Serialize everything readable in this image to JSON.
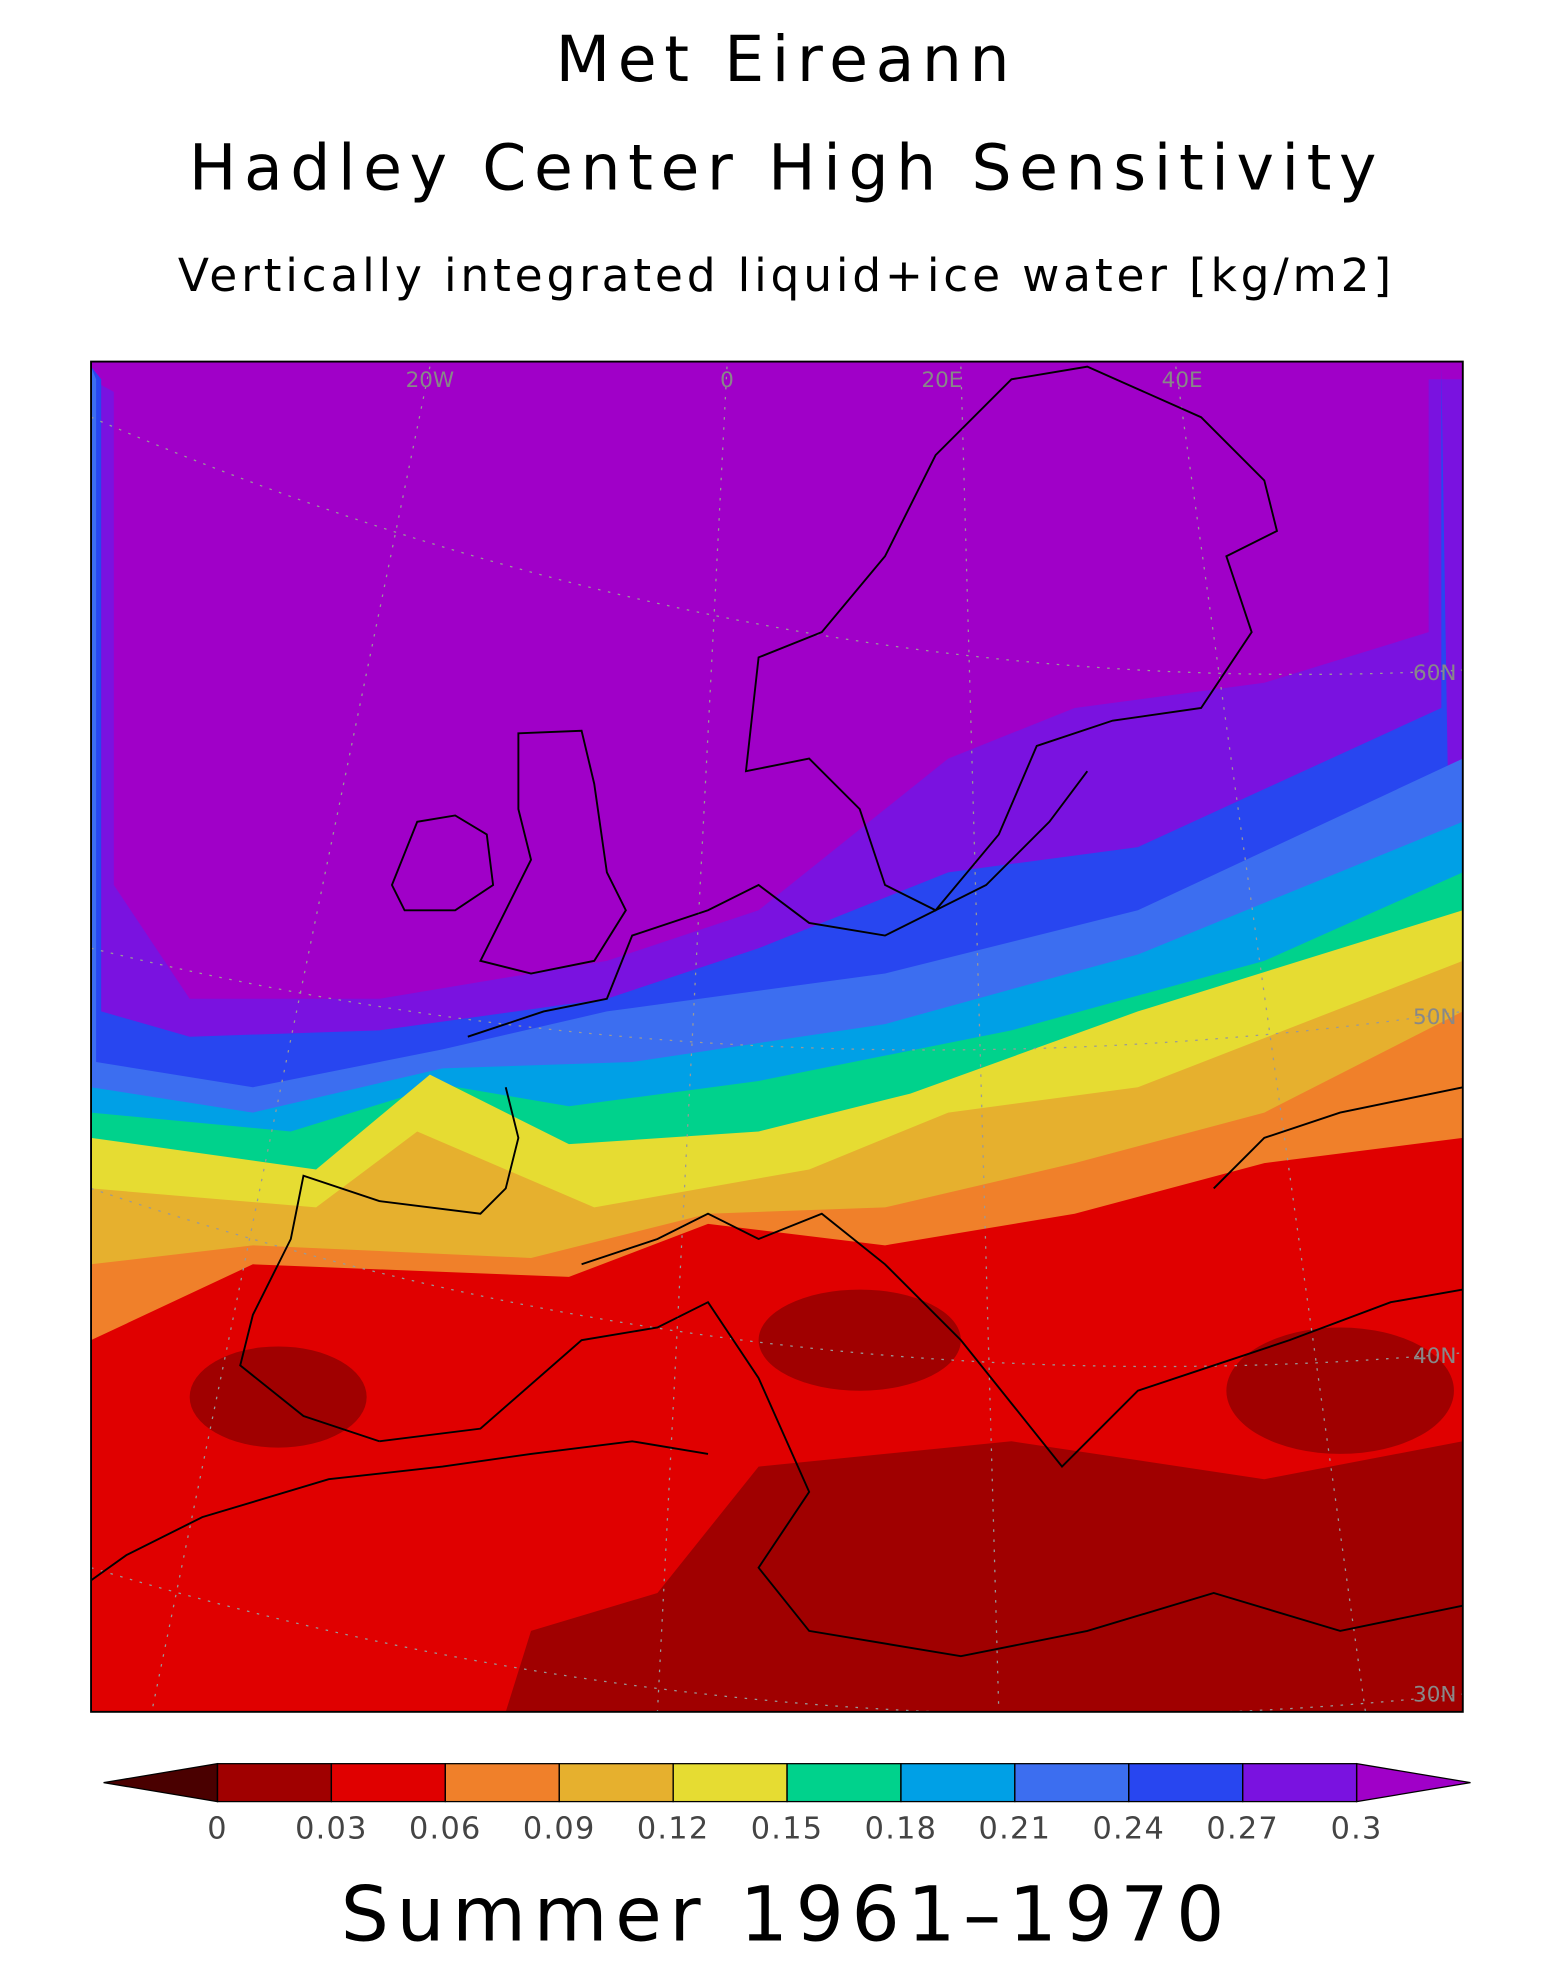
{
  "header": {
    "title": "Met Eireann",
    "subtitle": "Hadley Center High Sensitivity",
    "variable": "Vertically integrated liquid+ice water [kg/m2]"
  },
  "map": {
    "longitude_labels": [
      "20W",
      "0",
      "20E",
      "40E"
    ],
    "latitude_labels": [
      "60N",
      "50N",
      "40N",
      "30N"
    ]
  },
  "colorbar": {
    "ticks": [
      0,
      0.03,
      0.06,
      0.09,
      0.12,
      0.15,
      0.18,
      0.21,
      0.24,
      0.27,
      0.3
    ],
    "colors": [
      "#4a0000",
      "#a00000",
      "#e00000",
      "#f0802a",
      "#e6b02e",
      "#e6dc32",
      "#00d28c",
      "#00a0e6",
      "#3c6ef0",
      "#2846f0",
      "#7a12e0",
      "#a000c8"
    ]
  },
  "footer": "Summer 1961–1970"
}
